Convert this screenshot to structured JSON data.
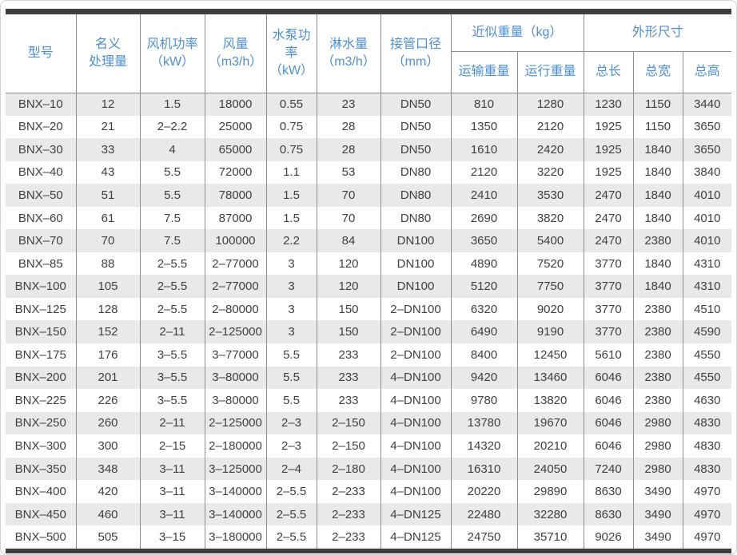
{
  "table": {
    "headers": {
      "model": "型号",
      "nominal_capacity": "名义\n处理量",
      "fan_power": "风机功率\n（kW）",
      "air_flow": "风量\n（m3/h）",
      "pump_power": "水泵功率\n（kW）",
      "spray_water": "淋水量\n（m3/h）",
      "pipe_diameter": "接管口径\n（mm）",
      "approx_weight_group": "近似重量（kg）",
      "dimensions_group": "外形尺寸",
      "transport_weight": "运输重量",
      "operating_weight": "运行重量",
      "total_length": "总长",
      "total_width": "总宽",
      "total_height": "总高"
    },
    "column_keys": [
      "model",
      "nominal_capacity",
      "fan_power",
      "air_flow",
      "pump_power",
      "spray_water",
      "pipe_diameter",
      "transport_weight",
      "operating_weight",
      "total_length",
      "total_width",
      "total_height"
    ],
    "rows": [
      [
        "BNX–10",
        "12",
        "1.5",
        "18000",
        "0.55",
        "23",
        "DN50",
        "810",
        "1280",
        "1230",
        "1150",
        "3440"
      ],
      [
        "BNX–20",
        "21",
        "2–2.2",
        "25000",
        "0.75",
        "28",
        "DN50",
        "1350",
        "2120",
        "1925",
        "1150",
        "3650"
      ],
      [
        "BNX–30",
        "33",
        "4",
        "65000",
        "0.75",
        "28",
        "DN50",
        "1610",
        "2420",
        "1925",
        "1840",
        "3650"
      ],
      [
        "BNX–40",
        "43",
        "5.5",
        "72000",
        "1.1",
        "53",
        "DN80",
        "2120",
        "3220",
        "1925",
        "1840",
        "3840"
      ],
      [
        "BNX–50",
        "51",
        "5.5",
        "78000",
        "1.5",
        "70",
        "DN80",
        "2410",
        "3530",
        "2470",
        "1840",
        "4010"
      ],
      [
        "BNX–60",
        "61",
        "7.5",
        "87000",
        "1.5",
        "70",
        "DN80",
        "2690",
        "3820",
        "2470",
        "1840",
        "4010"
      ],
      [
        "BNX–70",
        "70",
        "7.5",
        "100000",
        "2.2",
        "84",
        "DN100",
        "3650",
        "5400",
        "2470",
        "2380",
        "4010"
      ],
      [
        "BNX–85",
        "88",
        "2–5.5",
        "2–77000",
        "3",
        "120",
        "DN100",
        "4890",
        "7520",
        "3770",
        "1840",
        "4310"
      ],
      [
        "BNX–100",
        "105",
        "2–5.5",
        "2–77000",
        "3",
        "120",
        "DN100",
        "5120",
        "7750",
        "3770",
        "1840",
        "4310"
      ],
      [
        "BNX–125",
        "128",
        "2–5.5",
        "2–80000",
        "3",
        "150",
        "2–DN100",
        "6320",
        "9020",
        "3770",
        "2380",
        "4510"
      ],
      [
        "BNX–150",
        "152",
        "2–11",
        "2–125000",
        "3",
        "150",
        "2–DN100",
        "6490",
        "9190",
        "3770",
        "2380",
        "4590"
      ],
      [
        "BNX–175",
        "176",
        "3–5.5",
        "3–77000",
        "5.5",
        "233",
        "2–DN100",
        "8400",
        "12450",
        "5610",
        "2380",
        "4550"
      ],
      [
        "BNX–200",
        "201",
        "3–5.5",
        "3–80000",
        "5.5",
        "233",
        "4–DN100",
        "9420",
        "13460",
        "6046",
        "2380",
        "4550"
      ],
      [
        "BNX–225",
        "226",
        "3–5.5",
        "3–80000",
        "5.5",
        "233",
        "4–DN100",
        "9780",
        "13820",
        "6046",
        "2380",
        "4630"
      ],
      [
        "BNX–250",
        "260",
        "2–11",
        "2–125000",
        "2–3",
        "2–150",
        "4–DN100",
        "13780",
        "19670",
        "6046",
        "2980",
        "4830"
      ],
      [
        "BNX–300",
        "300",
        "2–15",
        "2–180000",
        "2–3",
        "2–150",
        "4–DN100",
        "14320",
        "20210",
        "6046",
        "2980",
        "4830"
      ],
      [
        "BNX–350",
        "348",
        "3–11",
        "3–125000",
        "2–4",
        "2–180",
        "4–DN100",
        "16310",
        "24050",
        "7240",
        "2980",
        "4830"
      ],
      [
        "BNX–400",
        "420",
        "3–11",
        "3–140000",
        "2–5.5",
        "2–233",
        "4–DN100",
        "20220",
        "29890",
        "8630",
        "3490",
        "4970"
      ],
      [
        "BNX–450",
        "460",
        "3–11",
        "3–140000",
        "2–5.5",
        "2–233",
        "4–DN125",
        "22480",
        "32280",
        "8630",
        "3490",
        "4970"
      ],
      [
        "BNX–500",
        "505",
        "3–15",
        "3–180000",
        "2–5.5",
        "2–233",
        "4–DN125",
        "24750",
        "35710",
        "9026",
        "3490",
        "4970"
      ]
    ]
  },
  "colors": {
    "header_text": "#4e8fd1",
    "body_text": "#3f3f3f",
    "stripe": "#e9e9e9",
    "grid_line": "#8e8e8e",
    "accent_bar": "#3d3d3d"
  },
  "chart_data": {
    "type": "table",
    "title": "",
    "columns": [
      "型号",
      "名义处理量",
      "风机功率（kW）",
      "风量（m3/h）",
      "水泵功率（kW）",
      "淋水量（m3/h）",
      "接管口径（mm）",
      "运输重量",
      "运行重量",
      "总长",
      "总宽",
      "总高"
    ],
    "column_groups": [
      {
        "label": "近似重量（kg）",
        "spans": [
          "运输重量",
          "运行重量"
        ]
      },
      {
        "label": "外形尺寸",
        "spans": [
          "总长",
          "总宽",
          "总高"
        ]
      }
    ],
    "row_count": 20
  }
}
